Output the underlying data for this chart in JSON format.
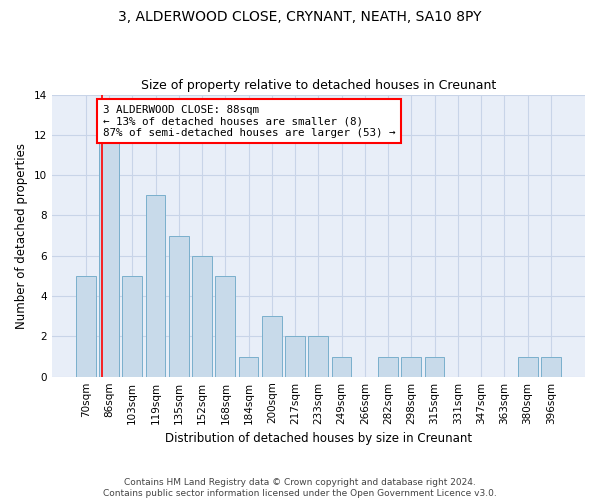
{
  "title1": "3, ALDERWOOD CLOSE, CRYNANT, NEATH, SA10 8PY",
  "title2": "Size of property relative to detached houses in Creunant",
  "xlabel": "Distribution of detached houses by size in Creunant",
  "ylabel": "Number of detached properties",
  "categories": [
    "70sqm",
    "86sqm",
    "103sqm",
    "119sqm",
    "135sqm",
    "152sqm",
    "168sqm",
    "184sqm",
    "200sqm",
    "217sqm",
    "233sqm",
    "249sqm",
    "266sqm",
    "282sqm",
    "298sqm",
    "315sqm",
    "331sqm",
    "347sqm",
    "363sqm",
    "380sqm",
    "396sqm"
  ],
  "values": [
    5,
    12,
    5,
    9,
    7,
    6,
    5,
    1,
    3,
    2,
    2,
    1,
    0,
    1,
    1,
    1,
    0,
    0,
    0,
    1,
    1
  ],
  "bar_color": "#c8daea",
  "bar_edge_color": "#7aafcc",
  "annotation_box_text": "3 ALDERWOOD CLOSE: 88sqm\n← 13% of detached houses are smaller (8)\n87% of semi-detached houses are larger (53) →",
  "annotation_box_color": "white",
  "annotation_box_edge_color": "red",
  "vline_color": "red",
  "vline_linewidth": 1.2,
  "ylim": [
    0,
    14
  ],
  "yticks": [
    0,
    2,
    4,
    6,
    8,
    10,
    12,
    14
  ],
  "grid_color": "#c8d4e8",
  "bg_color": "#e8eef8",
  "footer": "Contains HM Land Registry data © Crown copyright and database right 2024.\nContains public sector information licensed under the Open Government Licence v3.0.",
  "title_fontsize": 10,
  "subtitle_fontsize": 9,
  "ylabel_fontsize": 8.5,
  "xlabel_fontsize": 8.5,
  "tick_fontsize": 7.5,
  "annotation_fontsize": 7.8,
  "footer_fontsize": 6.5
}
